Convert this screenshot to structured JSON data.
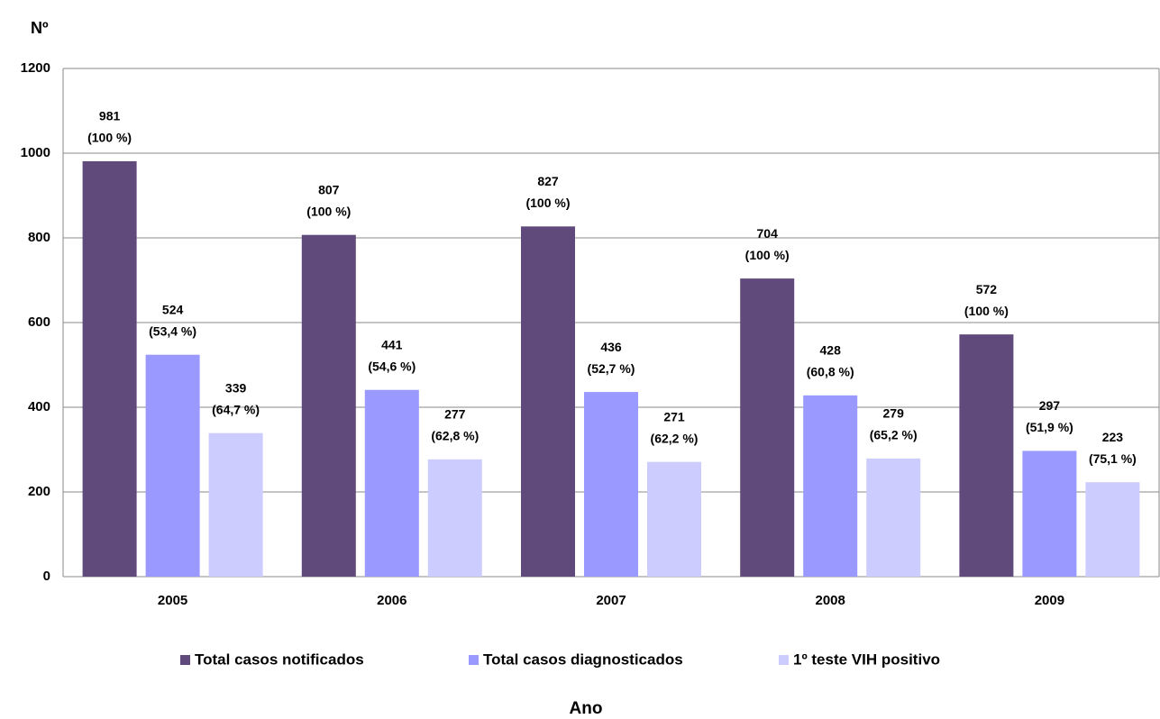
{
  "chart_data": {
    "type": "bar",
    "y_label": "Nº",
    "x_label": "Ano",
    "categories": [
      "2005",
      "2006",
      "2007",
      "2008",
      "2009"
    ],
    "series": [
      {
        "name": "Total casos notificados",
        "color": "#604a7b",
        "values": [
          981,
          807,
          827,
          704,
          572
        ],
        "value_labels": [
          [
            "981",
            "(100 %)"
          ],
          [
            "807",
            "(100 %)"
          ],
          [
            "827",
            "(100 %)"
          ],
          [
            "704",
            "(100 %)"
          ],
          [
            "572",
            "(100 %)"
          ]
        ]
      },
      {
        "name": "Total casos diagnosticados",
        "color": "#9999ff",
        "values": [
          524,
          441,
          436,
          428,
          297
        ],
        "value_labels": [
          [
            "524",
            "(53,4 %)"
          ],
          [
            "441",
            "(54,6 %)"
          ],
          [
            "436",
            "(52,7 %)"
          ],
          [
            "428",
            "(60,8 %)"
          ],
          [
            "297",
            "(51,9 %)"
          ]
        ]
      },
      {
        "name": "1º teste VIH positivo",
        "color": "#ccccff",
        "values": [
          339,
          277,
          271,
          279,
          223
        ],
        "value_labels": [
          [
            "339",
            "(64,7 %)"
          ],
          [
            "277",
            "(62,8 %)"
          ],
          [
            "271",
            "(62,2 %)"
          ],
          [
            "279",
            "(65,2 %)"
          ],
          [
            "223",
            "(75,1 %)"
          ]
        ]
      }
    ],
    "ylim": [
      0,
      1200
    ],
    "yticks": [
      0,
      200,
      400,
      600,
      800,
      1000,
      1200
    ],
    "grid": true,
    "legend": "bottom"
  }
}
